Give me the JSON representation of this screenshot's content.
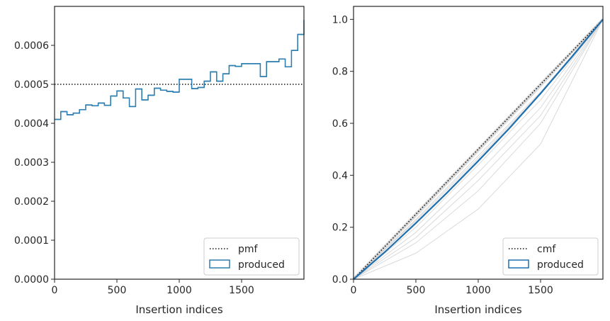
{
  "chart_data": [
    {
      "type": "step",
      "xlabel": "Insertion indices",
      "ylabel": "",
      "xlim": [
        0,
        2000
      ],
      "ylim": [
        0,
        0.0007
      ],
      "xticks": [
        0,
        500,
        1000,
        1500
      ],
      "xtick_labels": [
        "0",
        "500",
        "1000",
        "1500"
      ],
      "yticks": [
        0,
        0.0001,
        0.0002,
        0.0003,
        0.0004,
        0.0005,
        0.0006
      ],
      "ytick_labels": [
        "0.0000",
        "0.0001",
        "0.0002",
        "0.0003",
        "0.0004",
        "0.0005",
        "0.0006"
      ],
      "legend_position": "lower-right",
      "reference_line": {
        "name": "pmf",
        "y": 0.0005,
        "color": "#111111",
        "style": "dotted"
      },
      "series": [
        {
          "name": "produced",
          "color": "#2f7fb0",
          "bin_width": 50,
          "values": [
            0.00041,
            0.00043,
            0.000422,
            0.000426,
            0.000435,
            0.000447,
            0.000445,
            0.000452,
            0.000446,
            0.00047,
            0.000483,
            0.000465,
            0.000443,
            0.000488,
            0.00046,
            0.000472,
            0.00049,
            0.000485,
            0.000482,
            0.00048,
            0.000513,
            0.000513,
            0.000489,
            0.000492,
            0.000508,
            0.000532,
            0.000508,
            0.000527,
            0.000548,
            0.000546,
            0.000553,
            0.000553,
            0.000553,
            0.00052,
            0.000558,
            0.000558,
            0.000565,
            0.000545,
            0.000587,
            0.000628,
            0.000665
          ]
        }
      ]
    },
    {
      "type": "line",
      "xlabel": "Insertion indices",
      "ylabel": "",
      "xlim": [
        0,
        2000
      ],
      "ylim": [
        0,
        1.05
      ],
      "xticks": [
        0,
        500,
        1000,
        1500
      ],
      "xtick_labels": [
        "0",
        "500",
        "1000",
        "1500"
      ],
      "yticks": [
        0,
        0.2,
        0.4,
        0.6,
        0.8,
        1.0
      ],
      "ytick_labels": [
        "0.0",
        "0.2",
        "0.4",
        "0.6",
        "0.8",
        "1.0"
      ],
      "legend_position": "lower-right",
      "reference_line": {
        "name": "cmf",
        "color": "#111111",
        "style": "dotted",
        "x": [
          0,
          2000
        ],
        "y": [
          0,
          1.0
        ]
      },
      "background_lines_color": "#cccccc",
      "background_lines": [
        {
          "x": [
            0,
            500,
            1000,
            1500,
            2000
          ],
          "y": [
            0,
            0.24,
            0.49,
            0.74,
            1.0
          ]
        },
        {
          "x": [
            0,
            500,
            1000,
            1500,
            2000
          ],
          "y": [
            0,
            0.23,
            0.475,
            0.72,
            1.0
          ]
        },
        {
          "x": [
            0,
            500,
            1000,
            1500,
            2000
          ],
          "y": [
            0,
            0.225,
            0.465,
            0.715,
            1.0
          ]
        },
        {
          "x": [
            0,
            500,
            1000,
            1500,
            2000
          ],
          "y": [
            0,
            0.2,
            0.44,
            0.69,
            1.0
          ]
        },
        {
          "x": [
            0,
            500,
            1000,
            1500,
            2000
          ],
          "y": [
            0,
            0.18,
            0.41,
            0.66,
            1.0
          ]
        },
        {
          "x": [
            0,
            500,
            1000,
            1500,
            2000
          ],
          "y": [
            0,
            0.16,
            0.38,
            0.63,
            1.0
          ]
        },
        {
          "x": [
            0,
            500,
            1000,
            1500,
            2000
          ],
          "y": [
            0,
            0.14,
            0.34,
            0.6,
            1.0
          ]
        },
        {
          "x": [
            0,
            500,
            1000,
            1500,
            2000
          ],
          "y": [
            0,
            0.1,
            0.27,
            0.52,
            1.0
          ]
        }
      ],
      "series": [
        {
          "name": "produced",
          "color": "#1f6fae",
          "x": [
            0,
            250,
            500,
            750,
            1000,
            1250,
            1500,
            1750,
            2000
          ],
          "y": [
            0,
            0.104,
            0.216,
            0.333,
            0.455,
            0.581,
            0.715,
            0.855,
            1.0
          ]
        }
      ]
    }
  ]
}
